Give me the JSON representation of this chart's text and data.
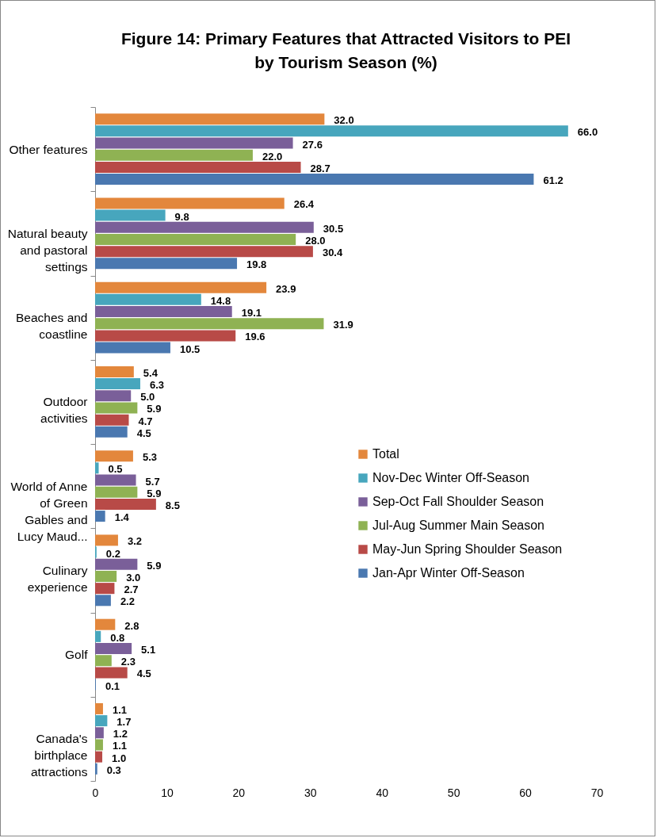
{
  "chart_data": {
    "type": "bar",
    "orientation": "horizontal",
    "title": "Figure 14: Primary Features that Attracted Visitors to PEI by Tourism Season (%)",
    "categories": [
      "Other features",
      "Natural beauty and pastoral settings",
      "Beaches and coastline",
      "Outdoor activities",
      "World of Anne of Green Gables and Lucy Maud...",
      "Culinary experience",
      "Golf",
      "Canada's birthplace attractions"
    ],
    "series": [
      {
        "name": "Total",
        "color": "#e3873c",
        "values": [
          32.0,
          26.4,
          23.9,
          5.4,
          5.3,
          3.2,
          2.8,
          1.1
        ],
        "value_labels": [
          "32.0",
          "26.4",
          "23.9",
          "5.4",
          "5.3",
          "3.2",
          "2.8",
          "1.1"
        ]
      },
      {
        "name": "Nov-Dec Winter Off-Season",
        "color": "#47a6bd",
        "values": [
          66.0,
          9.8,
          14.8,
          6.3,
          0.5,
          0.2,
          0.8,
          1.7
        ],
        "value_labels": [
          "66.0",
          "9.8",
          "14.8",
          "6.3",
          "0.5",
          "0.2",
          "0.8",
          "1.7"
        ]
      },
      {
        "name": "Sep-Oct Fall Shoulder Season",
        "color": "#7a5f99",
        "values": [
          27.6,
          30.5,
          19.1,
          5.0,
          5.7,
          5.9,
          5.1,
          1.2
        ],
        "value_labels": [
          "27.6",
          "30.5",
          "19.1",
          "5.0",
          "5.7",
          "5.9",
          "5.1",
          "1.2"
        ]
      },
      {
        "name": "Jul-Aug Summer Main Season",
        "color": "#8fb253",
        "values": [
          22.0,
          28.0,
          31.9,
          5.9,
          5.9,
          3.0,
          2.3,
          1.1
        ],
        "value_labels": [
          "22.0",
          "28.0",
          "31.9",
          "5.9",
          "5.9",
          "3.0",
          "2.3",
          "1.1"
        ]
      },
      {
        "name": "May-Jun Spring Shoulder Season",
        "color": "#b84a47",
        "values": [
          28.7,
          30.4,
          19.6,
          4.7,
          8.5,
          2.7,
          4.5,
          1.0
        ],
        "value_labels": [
          "28.7",
          "30.4",
          "19.6",
          "4.7",
          "8.5",
          "2.7",
          "4.5",
          "1.0"
        ]
      },
      {
        "name": "Jan-Apr Winter Off-Season",
        "color": "#4a78b0",
        "values": [
          61.2,
          19.8,
          10.5,
          4.5,
          1.4,
          2.2,
          0.1,
          0.3
        ],
        "value_labels": [
          "61.2",
          "19.8",
          "10.5",
          "4.5",
          "1.4",
          "2.2",
          "0.1",
          "0.3"
        ]
      }
    ],
    "xlim": [
      0,
      70
    ],
    "xticks": [
      0,
      10,
      20,
      30,
      40,
      50,
      60,
      70
    ],
    "legend": "right",
    "grid": false
  }
}
